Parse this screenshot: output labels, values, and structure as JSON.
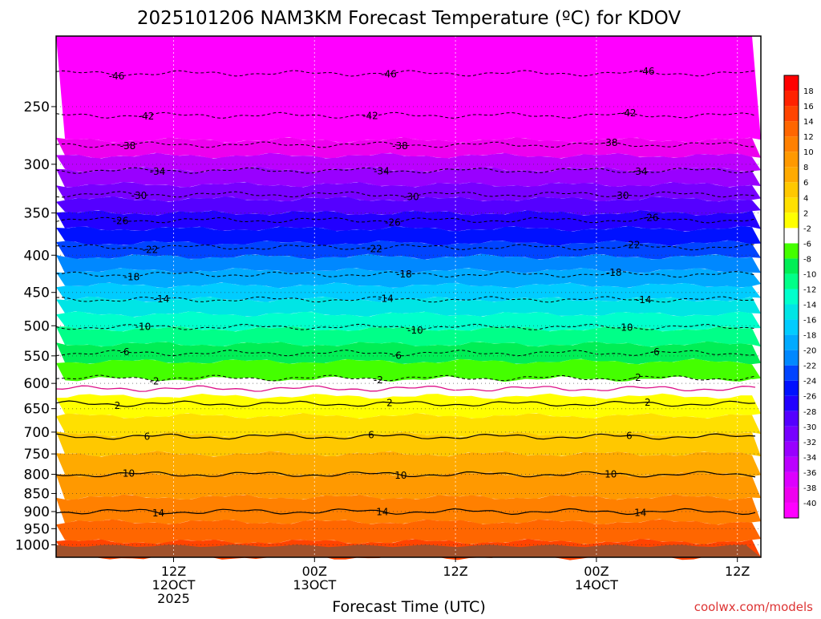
{
  "chart_data": {
    "type": "heatmap",
    "title": "2025101206 NAM3KM Forecast Temperature (ºC) for KDOV",
    "xlabel": "Forecast Time (UTC)",
    "credit": "coolwx.com/models",
    "y_axis": {
      "scale": "log-pressure",
      "range_hpa": [
        1040,
        200
      ],
      "ticks": [
        250,
        300,
        350,
        400,
        450,
        500,
        550,
        600,
        650,
        700,
        750,
        800,
        850,
        900,
        950,
        1000
      ]
    },
    "x_axis": {
      "range_hours": [
        -4,
        56
      ],
      "ticks": [
        {
          "hour": 6,
          "labels": [
            "12Z",
            "12OCT",
            "2025"
          ]
        },
        {
          "hour": 18,
          "labels": [
            "00Z",
            "13OCT"
          ]
        },
        {
          "hour": 30,
          "labels": [
            "12Z"
          ]
        },
        {
          "hour": 42,
          "labels": [
            "00Z",
            "14OCT"
          ]
        },
        {
          "hour": 54,
          "labels": [
            "12Z"
          ]
        }
      ]
    },
    "colorbar": {
      "colors": [
        "#FF00FF",
        "#EE00EE",
        "#DD00FF",
        "#BB00FF",
        "#9900FF",
        "#7700FF",
        "#5500FF",
        "#2200FF",
        "#0011FF",
        "#0044FF",
        "#0088FF",
        "#00AAFF",
        "#00CCFF",
        "#00E5E5",
        "#00FFCC",
        "#00FF88",
        "#00EE55",
        "#44FF00",
        "#FFFFFF",
        "#FFFF00",
        "#FFE000",
        "#FFC800",
        "#FFAA00",
        "#FF9900",
        "#FF8000",
        "#FF6600",
        "#FF4400",
        "#FF2200",
        "#FF0000"
      ],
      "labels": [
        "-40",
        "-38",
        "-36",
        "-34",
        "-32",
        "-30",
        "-28",
        "-26",
        "-24",
        "-22",
        "-20",
        "-18",
        "-16",
        "-14",
        "-12",
        "-10",
        "-8",
        "-6",
        "-2",
        "2",
        "4",
        "6",
        "8",
        "10",
        "12",
        "14",
        "16",
        "18"
      ]
    },
    "isotherms": [
      {
        "value": -46,
        "pressure_hpa": 225,
        "label": "-46"
      },
      {
        "value": -42,
        "pressure_hpa": 257,
        "label": "-42"
      },
      {
        "value": -38,
        "pressure_hpa": 282,
        "label": "-38"
      },
      {
        "value": -34,
        "pressure_hpa": 306,
        "label": "-34"
      },
      {
        "value": -30,
        "pressure_hpa": 330,
        "label": "-30"
      },
      {
        "value": -26,
        "pressure_hpa": 358,
        "label": "-26"
      },
      {
        "value": -22,
        "pressure_hpa": 390,
        "label": "-22"
      },
      {
        "value": -18,
        "pressure_hpa": 425,
        "label": "-18"
      },
      {
        "value": -14,
        "pressure_hpa": 460,
        "label": "-14"
      },
      {
        "value": -10,
        "pressure_hpa": 502,
        "label": "-10"
      },
      {
        "value": -6,
        "pressure_hpa": 545,
        "label": "-6"
      },
      {
        "value": -2,
        "pressure_hpa": 590,
        "label": "-2"
      },
      {
        "value": 0,
        "pressure_hpa": 610,
        "label": ""
      },
      {
        "value": 2,
        "pressure_hpa": 640,
        "label": "2"
      },
      {
        "value": 6,
        "pressure_hpa": 710,
        "label": "6"
      },
      {
        "value": 10,
        "pressure_hpa": 800,
        "label": "10"
      },
      {
        "value": 14,
        "pressure_hpa": 900,
        "label": "14"
      }
    ],
    "bands_by_pressure": [
      {
        "pressure_hpa": 200,
        "color": "#FF00FF"
      },
      {
        "pressure_hpa": 278,
        "color": "#EE00EE"
      },
      {
        "pressure_hpa": 292,
        "color": "#BB00FF"
      },
      {
        "pressure_hpa": 305,
        "color": "#9900FF"
      },
      {
        "pressure_hpa": 320,
        "color": "#7700FF"
      },
      {
        "pressure_hpa": 335,
        "color": "#5500FF"
      },
      {
        "pressure_hpa": 350,
        "color": "#2200FF"
      },
      {
        "pressure_hpa": 368,
        "color": "#0011FF"
      },
      {
        "pressure_hpa": 385,
        "color": "#0044FF"
      },
      {
        "pressure_hpa": 402,
        "color": "#0088FF"
      },
      {
        "pressure_hpa": 420,
        "color": "#00AAFF"
      },
      {
        "pressure_hpa": 440,
        "color": "#00CCFF"
      },
      {
        "pressure_hpa": 460,
        "color": "#00E5E5"
      },
      {
        "pressure_hpa": 482,
        "color": "#00FFCC"
      },
      {
        "pressure_hpa": 505,
        "color": "#00FF88"
      },
      {
        "pressure_hpa": 530,
        "color": "#00EE55"
      },
      {
        "pressure_hpa": 560,
        "color": "#44FF00"
      },
      {
        "pressure_hpa": 592,
        "color": "#FFFFFF"
      },
      {
        "pressure_hpa": 625,
        "color": "#FFFF00"
      },
      {
        "pressure_hpa": 665,
        "color": "#FFE000"
      },
      {
        "pressure_hpa": 705,
        "color": "#FFC800"
      },
      {
        "pressure_hpa": 750,
        "color": "#FFAA00"
      },
      {
        "pressure_hpa": 800,
        "color": "#FF9900"
      },
      {
        "pressure_hpa": 860,
        "color": "#FF8000"
      },
      {
        "pressure_hpa": 930,
        "color": "#FF6600"
      },
      {
        "pressure_hpa": 990,
        "color": "#FF4400"
      },
      {
        "pressure_hpa": 1040,
        "color": "#FF4400"
      }
    ],
    "ground_color": "#A0522D",
    "freezing_line_color": "#DD1188"
  }
}
